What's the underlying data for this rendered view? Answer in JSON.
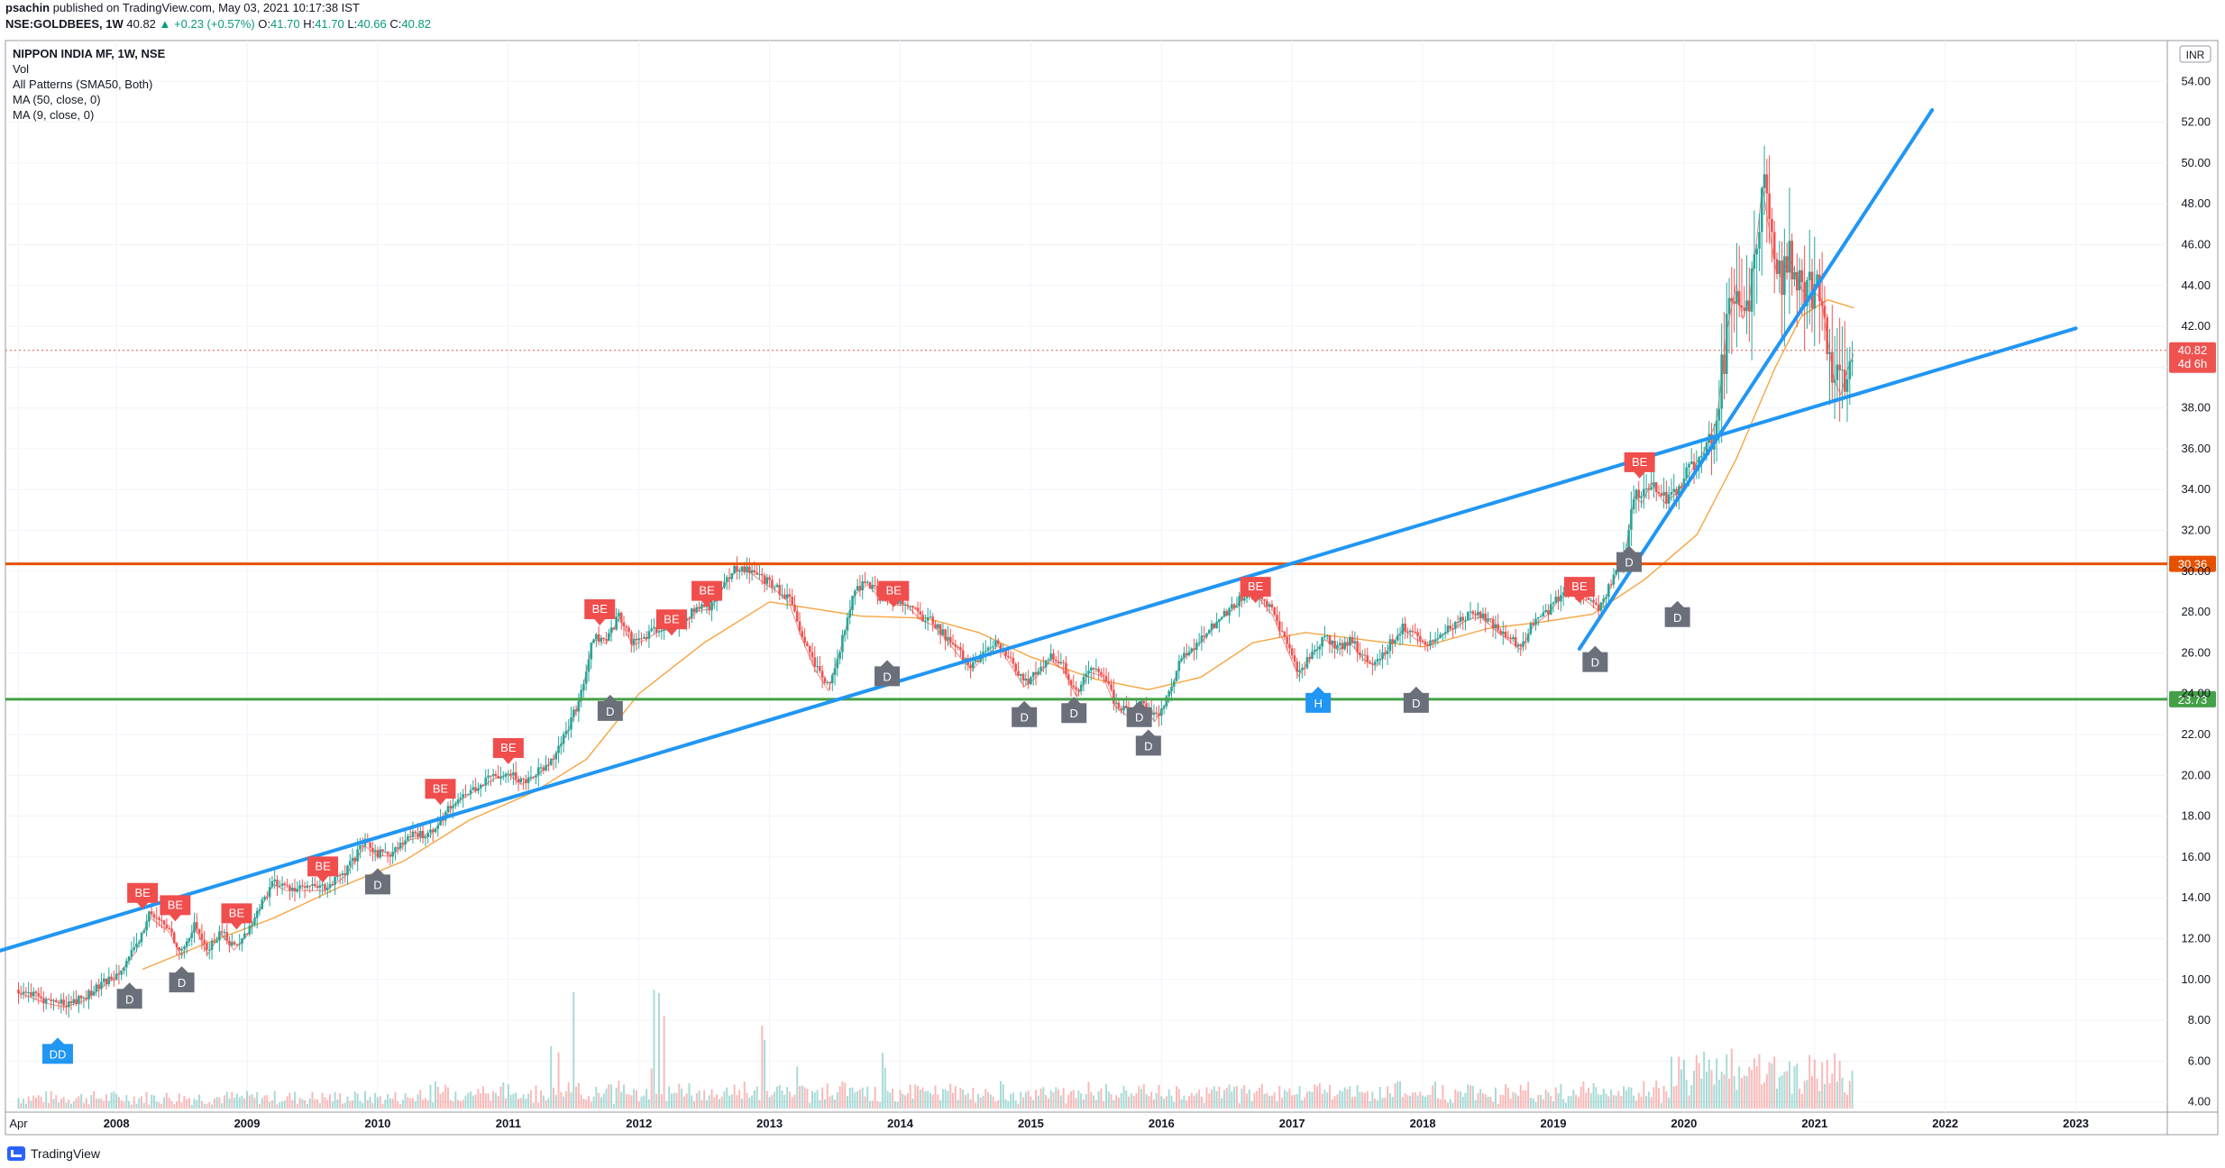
{
  "header": {
    "publisher": "psachin",
    "published_text": "published on TradingView.com, May 03, 2021 10:17:38 IST",
    "symbol_line_prefix": "NSE:GOLDBEES, 1W",
    "last": "40.82",
    "change_text": "+0.23 (+0.57%)",
    "o_label": "O:",
    "o_value": "41.70",
    "h_label": "H:",
    "h_value": "41.70",
    "l_label": "L:",
    "l_value": "40.66",
    "c_label": "C:",
    "c_value": "40.82"
  },
  "legend": {
    "title": "NIPPON INDIA MF, 1W, NSE",
    "items": [
      "Vol",
      "All Patterns (SMA50, Both)",
      "MA (50, close, 0)",
      "MA (9, close, 0)"
    ]
  },
  "currency": "INR",
  "price_badge": {
    "price": "40.82",
    "countdown": "4d 6h"
  },
  "footer": {
    "brand": "TradingView"
  },
  "colors": {
    "up": "#26a69a",
    "down": "#ef5350",
    "trendline": "#2196f3",
    "resistance": "#e65100",
    "support": "#43a047",
    "ma50": "#f7a441",
    "ma9": "#ef5350",
    "label_be": "#f04d4d",
    "label_d": "#6b6f7a",
    "label_h": "#2196f3"
  },
  "chart_data": {
    "type": "line",
    "title": "NIPPON INDIA MF, 1W, NSE",
    "interval": "1W",
    "y_axis": {
      "min": 3.5,
      "max": 56,
      "ticks": [
        4,
        6,
        8,
        10,
        12,
        14,
        16,
        18,
        20,
        22,
        24,
        26,
        28,
        30,
        32,
        34,
        36,
        38,
        40,
        42,
        44,
        46,
        48,
        50,
        52,
        54
      ],
      "tick_labels": [
        "4.00",
        "6.00",
        "8.00",
        "10.00",
        "12.00",
        "14.00",
        "16.00",
        "18.00",
        "20.00",
        "22.00",
        "24.00",
        "26.00",
        "28.00",
        "30.00",
        "32.00",
        "34.00",
        "36.00",
        "38.00",
        "40.00",
        "42.00",
        "44.00",
        "46.00",
        "48.00",
        "50.00",
        "52.00",
        "54.00"
      ]
    },
    "x_axis": {
      "range": [
        2007.15,
        2023.7
      ],
      "ticks": [
        2007.25,
        2008,
        2009,
        2010,
        2011,
        2012,
        2013,
        2014,
        2015,
        2016,
        2017,
        2018,
        2019,
        2020,
        2021,
        2022,
        2023
      ],
      "tick_labels": [
        "Apr",
        "2008",
        "2009",
        "2010",
        "2011",
        "2012",
        "2013",
        "2014",
        "2015",
        "2016",
        "2017",
        "2018",
        "2019",
        "2020",
        "2021",
        "2022",
        "2023"
      ]
    },
    "price_path": [
      [
        2007.25,
        9.5
      ],
      [
        2007.45,
        9.0
      ],
      [
        2007.6,
        8.8
      ],
      [
        2007.75,
        9.1
      ],
      [
        2007.9,
        9.8
      ],
      [
        2008.0,
        10.3
      ],
      [
        2008.15,
        11.5
      ],
      [
        2008.25,
        13.2
      ],
      [
        2008.4,
        12.5
      ],
      [
        2008.5,
        11.3
      ],
      [
        2008.6,
        12.7
      ],
      [
        2008.7,
        11.4
      ],
      [
        2008.8,
        12.4
      ],
      [
        2008.9,
        11.6
      ],
      [
        2009.0,
        12.3
      ],
      [
        2009.1,
        13.6
      ],
      [
        2009.2,
        14.8
      ],
      [
        2009.3,
        14.5
      ],
      [
        2009.45,
        14.5
      ],
      [
        2009.6,
        14.5
      ],
      [
        2009.75,
        15.2
      ],
      [
        2009.9,
        16.7
      ],
      [
        2010.0,
        16.2
      ],
      [
        2010.1,
        16.2
      ],
      [
        2010.25,
        17.0
      ],
      [
        2010.4,
        17.2
      ],
      [
        2010.5,
        18.0
      ],
      [
        2010.6,
        18.8
      ],
      [
        2010.75,
        19.4
      ],
      [
        2010.9,
        20.0
      ],
      [
        2011.0,
        20.2
      ],
      [
        2011.1,
        19.7
      ],
      [
        2011.25,
        20.3
      ],
      [
        2011.35,
        21.0
      ],
      [
        2011.45,
        22.2
      ],
      [
        2011.55,
        23.8
      ],
      [
        2011.65,
        26.8
      ],
      [
        2011.75,
        26.6
      ],
      [
        2011.85,
        27.9
      ],
      [
        2011.95,
        26.5
      ],
      [
        2012.05,
        26.8
      ],
      [
        2012.15,
        27.2
      ],
      [
        2012.3,
        27.4
      ],
      [
        2012.45,
        28.2
      ],
      [
        2012.55,
        28.3
      ],
      [
        2012.65,
        29.4
      ],
      [
        2012.75,
        30.2
      ],
      [
        2012.85,
        30.1
      ],
      [
        2012.95,
        29.6
      ],
      [
        2013.05,
        29.2
      ],
      [
        2013.15,
        28.6
      ],
      [
        2013.25,
        26.8
      ],
      [
        2013.35,
        25.3
      ],
      [
        2013.45,
        24.3
      ],
      [
        2013.55,
        26.5
      ],
      [
        2013.65,
        29.0
      ],
      [
        2013.75,
        29.5
      ],
      [
        2013.85,
        28.8
      ],
      [
        2013.95,
        28.5
      ],
      [
        2014.05,
        28.5
      ],
      [
        2014.15,
        27.8
      ],
      [
        2014.25,
        27.5
      ],
      [
        2014.35,
        26.8
      ],
      [
        2014.45,
        26.0
      ],
      [
        2014.55,
        25.3
      ],
      [
        2014.65,
        26.0
      ],
      [
        2014.75,
        26.5
      ],
      [
        2014.85,
        25.5
      ],
      [
        2014.95,
        24.5
      ],
      [
        2015.05,
        25.0
      ],
      [
        2015.15,
        25.8
      ],
      [
        2015.25,
        25.3
      ],
      [
        2015.35,
        24.0
      ],
      [
        2015.45,
        25.2
      ],
      [
        2015.55,
        25.0
      ],
      [
        2015.65,
        23.5
      ],
      [
        2015.75,
        23.0
      ],
      [
        2015.85,
        23.5
      ],
      [
        2015.95,
        22.8
      ],
      [
        2016.05,
        23.8
      ],
      [
        2016.15,
        25.8
      ],
      [
        2016.25,
        26.3
      ],
      [
        2016.35,
        27.0
      ],
      [
        2016.45,
        27.8
      ],
      [
        2016.55,
        28.3
      ],
      [
        2016.65,
        29.0
      ],
      [
        2016.75,
        28.8
      ],
      [
        2016.85,
        28.0
      ],
      [
        2016.95,
        26.5
      ],
      [
        2017.05,
        25.0
      ],
      [
        2017.15,
        26.0
      ],
      [
        2017.25,
        26.8
      ],
      [
        2017.35,
        26.3
      ],
      [
        2017.45,
        26.6
      ],
      [
        2017.55,
        25.8
      ],
      [
        2017.65,
        25.5
      ],
      [
        2017.75,
        26.5
      ],
      [
        2017.85,
        27.3
      ],
      [
        2017.95,
        26.8
      ],
      [
        2018.05,
        26.5
      ],
      [
        2018.15,
        27.0
      ],
      [
        2018.25,
        27.4
      ],
      [
        2018.35,
        27.8
      ],
      [
        2018.45,
        27.9
      ],
      [
        2018.55,
        27.3
      ],
      [
        2018.65,
        26.8
      ],
      [
        2018.75,
        26.3
      ],
      [
        2018.85,
        27.5
      ],
      [
        2018.95,
        28.0
      ],
      [
        2019.05,
        28.8
      ],
      [
        2019.15,
        29.2
      ],
      [
        2019.25,
        28.7
      ],
      [
        2019.35,
        28.2
      ],
      [
        2019.45,
        29.5
      ],
      [
        2019.55,
        31.0
      ],
      [
        2019.62,
        33.8
      ],
      [
        2019.68,
        33.5
      ],
      [
        2019.75,
        34.5
      ],
      [
        2019.85,
        33.5
      ],
      [
        2019.95,
        34.0
      ],
      [
        2020.05,
        35.0
      ],
      [
        2020.15,
        36.0
      ],
      [
        2020.25,
        37.5
      ],
      [
        2020.33,
        42.0
      ],
      [
        2020.4,
        44.2
      ],
      [
        2020.45,
        42.5
      ],
      [
        2020.5,
        43.5
      ],
      [
        2020.55,
        46.0
      ],
      [
        2020.6,
        49.0
      ],
      [
        2020.65,
        47.0
      ],
      [
        2020.7,
        45.0
      ],
      [
        2020.75,
        44.5
      ],
      [
        2020.8,
        45.5
      ],
      [
        2020.85,
        44.8
      ],
      [
        2020.9,
        44.0
      ],
      [
        2020.95,
        43.5
      ],
      [
        2021.0,
        43.8
      ],
      [
        2021.05,
        43.5
      ],
      [
        2021.1,
        41.5
      ],
      [
        2021.15,
        39.5
      ],
      [
        2021.2,
        38.8
      ],
      [
        2021.25,
        40.0
      ],
      [
        2021.3,
        40.8
      ]
    ],
    "ma50_path": [
      [
        2008.2,
        10.5
      ],
      [
        2008.7,
        11.8
      ],
      [
        2009.2,
        13.0
      ],
      [
        2009.7,
        14.5
      ],
      [
        2010.2,
        15.8
      ],
      [
        2010.7,
        17.8
      ],
      [
        2011.2,
        19.2
      ],
      [
        2011.6,
        20.8
      ],
      [
        2012.0,
        24.0
      ],
      [
        2012.5,
        26.5
      ],
      [
        2013.0,
        28.5
      ],
      [
        2013.3,
        28.2
      ],
      [
        2013.7,
        27.8
      ],
      [
        2014.2,
        27.7
      ],
      [
        2014.6,
        27.0
      ],
      [
        2015.0,
        25.8
      ],
      [
        2015.5,
        24.7
      ],
      [
        2015.9,
        24.2
      ],
      [
        2016.3,
        24.8
      ],
      [
        2016.7,
        26.5
      ],
      [
        2017.1,
        27.0
      ],
      [
        2017.6,
        26.6
      ],
      [
        2018.0,
        26.3
      ],
      [
        2018.5,
        27.2
      ],
      [
        2018.9,
        27.5
      ],
      [
        2019.3,
        27.9
      ],
      [
        2019.7,
        29.6
      ],
      [
        2020.1,
        31.8
      ],
      [
        2020.4,
        35.5
      ],
      [
        2020.7,
        40.0
      ],
      [
        2020.9,
        42.5
      ],
      [
        2021.1,
        43.3
      ],
      [
        2021.3,
        42.9
      ]
    ],
    "trendlines": [
      {
        "from": [
          2007.0,
          11.2
        ],
        "to": [
          2023.0,
          41.9
        ]
      },
      {
        "from": [
          2019.2,
          26.2
        ],
        "to": [
          2021.9,
          52.6
        ]
      }
    ],
    "horizontal_levels": [
      {
        "value": 30.36,
        "label": "30.36",
        "color": "#e65100"
      },
      {
        "value": 23.73,
        "label": "23.73",
        "color": "#43a047"
      }
    ],
    "current_price_line": 40.82,
    "pattern_labels": [
      {
        "text": "DD",
        "x": 2007.55,
        "y": 7.5,
        "color": "blue",
        "pos": "below"
      },
      {
        "text": "D",
        "x": 2008.1,
        "y": 10.2,
        "color": "gray",
        "pos": "below"
      },
      {
        "text": "D",
        "x": 2008.5,
        "y": 11.0,
        "color": "gray",
        "pos": "below"
      },
      {
        "text": "BE",
        "x": 2008.2,
        "y": 13.4,
        "color": "red",
        "pos": "above"
      },
      {
        "text": "BE",
        "x": 2008.45,
        "y": 12.8,
        "color": "red",
        "pos": "above"
      },
      {
        "text": "BE",
        "x": 2008.92,
        "y": 12.4,
        "color": "red",
        "pos": "above"
      },
      {
        "text": "BE",
        "x": 2009.58,
        "y": 14.7,
        "color": "red",
        "pos": "above"
      },
      {
        "text": "D",
        "x": 2010.0,
        "y": 15.8,
        "color": "gray",
        "pos": "below"
      },
      {
        "text": "BE",
        "x": 2010.48,
        "y": 18.5,
        "color": "red",
        "pos": "above"
      },
      {
        "text": "BE",
        "x": 2011.0,
        "y": 20.5,
        "color": "red",
        "pos": "above"
      },
      {
        "text": "D",
        "x": 2011.78,
        "y": 24.3,
        "color": "gray",
        "pos": "below"
      },
      {
        "text": "BE",
        "x": 2011.7,
        "y": 27.3,
        "color": "red",
        "pos": "above"
      },
      {
        "text": "BE",
        "x": 2012.25,
        "y": 26.8,
        "color": "red",
        "pos": "above"
      },
      {
        "text": "BE",
        "x": 2012.52,
        "y": 28.2,
        "color": "red",
        "pos": "above"
      },
      {
        "text": "BE",
        "x": 2013.95,
        "y": 28.2,
        "color": "red",
        "pos": "above"
      },
      {
        "text": "D",
        "x": 2013.9,
        "y": 26.0,
        "color": "gray",
        "pos": "below"
      },
      {
        "text": "D",
        "x": 2014.95,
        "y": 24.0,
        "color": "gray",
        "pos": "below"
      },
      {
        "text": "D",
        "x": 2015.33,
        "y": 24.2,
        "color": "gray",
        "pos": "below"
      },
      {
        "text": "D",
        "x": 2015.83,
        "y": 24.0,
        "color": "gray",
        "pos": "below"
      },
      {
        "text": "D",
        "x": 2015.9,
        "y": 22.6,
        "color": "gray",
        "pos": "below"
      },
      {
        "text": "BE",
        "x": 2016.72,
        "y": 28.4,
        "color": "red",
        "pos": "above"
      },
      {
        "text": "H",
        "x": 2017.2,
        "y": 24.7,
        "color": "blue",
        "pos": "below"
      },
      {
        "text": "D",
        "x": 2017.95,
        "y": 24.7,
        "color": "gray",
        "pos": "below"
      },
      {
        "text": "BE",
        "x": 2019.2,
        "y": 28.4,
        "color": "red",
        "pos": "above"
      },
      {
        "text": "D",
        "x": 2019.32,
        "y": 26.7,
        "color": "gray",
        "pos": "below"
      },
      {
        "text": "D",
        "x": 2019.58,
        "y": 31.6,
        "color": "gray",
        "pos": "below"
      },
      {
        "text": "D",
        "x": 2019.95,
        "y": 28.9,
        "color": "gray",
        "pos": "below"
      },
      {
        "text": "BE",
        "x": 2019.66,
        "y": 34.5,
        "color": "red",
        "pos": "above"
      }
    ]
  }
}
